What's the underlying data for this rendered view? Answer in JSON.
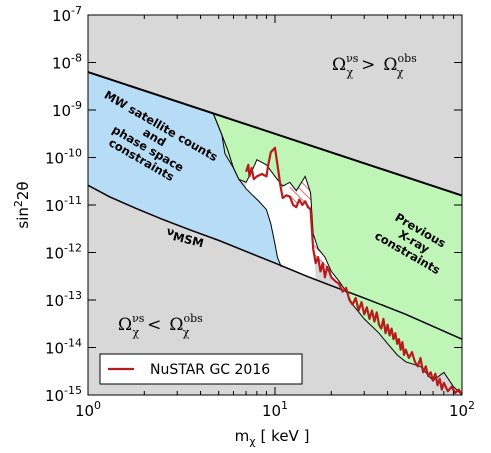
{
  "chart_data": {
    "type": "line",
    "title": "",
    "xlabel": {
      "main": "m",
      "sub": "χ",
      "unit": "[ keV ]"
    },
    "ylabel": {
      "main": "sin",
      "sup": "2",
      "suffix": "2θ"
    },
    "xscale": "log",
    "yscale": "log",
    "xlim": [
      1,
      100
    ],
    "ylim": [
      1e-15,
      1e-07
    ],
    "x_ticks": [
      {
        "value": 1,
        "base": "10",
        "exp": "0"
      },
      {
        "value": 10,
        "base": "10",
        "exp": "1"
      },
      {
        "value": 100,
        "base": "10",
        "exp": "2"
      }
    ],
    "y_ticks": [
      {
        "value": 1e-15,
        "base": "10",
        "exp": "-15"
      },
      {
        "value": 1e-14,
        "base": "10",
        "exp": "-14"
      },
      {
        "value": 1e-13,
        "base": "10",
        "exp": "-13"
      },
      {
        "value": 1e-12,
        "base": "10",
        "exp": "-12"
      },
      {
        "value": 1e-11,
        "base": "10",
        "exp": "-11"
      },
      {
        "value": 1e-10,
        "base": "10",
        "exp": "-10"
      },
      {
        "value": 1e-09,
        "base": "10",
        "exp": "-9"
      },
      {
        "value": 1e-08,
        "base": "10",
        "exp": "-8"
      },
      {
        "value": 1e-07,
        "base": "10",
        "exp": "-7"
      }
    ],
    "grid": false,
    "legend": {
      "placement": "bottom-left",
      "entries": [
        {
          "name": "NuSTAR GC 2016",
          "color": "#b71c1c"
        }
      ]
    },
    "colors": {
      "background": "#d8d8d8",
      "mw_region": "#b6dcf6",
      "xray_region": "#c0f5b8",
      "nustar_line": "#b71c1c",
      "hatch": "#e06a60"
    },
    "annotations": {
      "upper": {
        "main": "Ω",
        "sup": "νs",
        "sub": "χ",
        "op": ">",
        "rhs": "Ω",
        "rhs_sup": "obs",
        "rhs_sub": "χ"
      },
      "lower": {
        "main": "Ω",
        "sup": "νs",
        "sub": "χ",
        "op": "<",
        "rhs": "Ω",
        "rhs_sup": "obs",
        "rhs_sub": "χ"
      },
      "mw": [
        "MW satellite counts",
        "and",
        "phase space",
        "constraints"
      ],
      "xray": [
        "Previous",
        "X-ray",
        "constraints"
      ],
      "numsm": {
        "prefix": "ν",
        "text": "MSM"
      }
    },
    "series": [
      {
        "name": "upper_boundary",
        "x": [
          1,
          100
        ],
        "y": [
          6.3e-09,
          1.58e-11
        ]
      },
      {
        "name": "lower_boundary",
        "x": [
          1,
          1.3,
          1.8,
          2.5,
          3.5,
          5,
          7,
          10,
          15,
          20,
          30,
          50,
          100
        ],
        "y": [
          2.6e-11,
          1.5e-11,
          8.5e-12,
          5e-12,
          3e-12,
          1.8e-12,
          1.05e-12,
          6e-13,
          3.1e-13,
          2e-13,
          1.1e-13,
          5e-14,
          1.5e-14
        ]
      },
      {
        "name": "xray_boundary",
        "x": [
          4.7,
          5.2,
          5.4,
          6,
          6.4,
          7,
          7.5,
          8,
          9,
          10,
          11,
          12,
          13,
          14.5,
          15.5,
          16,
          17,
          18.5,
          20,
          22,
          24,
          26,
          30,
          36,
          40,
          45,
          50,
          60,
          70,
          80,
          90,
          100
        ],
        "y": [
          8e-10,
          3e-10,
          1.2e-10,
          6e-11,
          3.5e-11,
          3e-11,
          5e-11,
          9e-11,
          7e-11,
          4e-11,
          2.5e-11,
          3e-11,
          2e-11,
          4e-11,
          1.8e-11,
          2.5e-12,
          1.2e-12,
          8e-13,
          4e-13,
          2.5e-13,
          1.5e-13,
          8e-14,
          4e-14,
          2e-14,
          1.2e-14,
          7e-15,
          5e-15,
          4e-15,
          2e-15,
          3e-15,
          1.5e-15,
          1e-15
        ]
      },
      {
        "name": "mw_boundary",
        "x": [
          4.7,
          5.2,
          5.6,
          6,
          6.4,
          7,
          7.6,
          8.2,
          9,
          9.5,
          10,
          10.3,
          10.8
        ],
        "y": [
          8e-10,
          3e-10,
          1.4e-10,
          6e-11,
          3.5e-11,
          2.2e-11,
          1.6e-11,
          1.2e-11,
          8e-12,
          4e-12,
          1.5e-12,
          8e-13,
          5e-13
        ]
      },
      {
        "name": "NuSTAR GC 2016",
        "x": [
          7.0,
          7.2,
          7.3,
          7.5,
          7.7,
          8,
          8.5,
          9,
          9.2,
          9.5,
          10,
          10.4,
          10.7,
          11,
          11.5,
          12,
          12.5,
          13,
          13.5,
          14,
          14.5,
          15,
          15.5,
          16,
          16.5,
          17,
          17.5,
          18,
          18.5,
          19,
          19.5,
          20,
          21,
          22,
          23,
          24,
          25,
          26,
          27,
          28,
          29,
          30,
          31,
          32,
          33,
          34,
          35,
          36,
          37,
          38,
          39,
          40,
          41,
          42,
          43,
          44,
          45,
          46,
          47,
          48,
          49,
          50,
          52,
          54,
          56,
          58,
          60,
          62,
          64,
          66,
          68,
          70,
          72,
          74,
          76,
          78,
          80,
          84,
          88,
          92,
          96,
          100
        ],
        "y": [
          5e-11,
          7e-11,
          4e-11,
          6e-11,
          3.5e-11,
          4e-11,
          4.5e-11,
          4e-11,
          7e-11,
          1.3e-10,
          1.6e-10,
          5.5e-11,
          2.5e-11,
          1.4e-11,
          1.6e-11,
          1.5e-11,
          1e-11,
          9e-12,
          1.3e-11,
          1e-11,
          1.2e-11,
          9e-12,
          8e-12,
          1.2e-12,
          6e-13,
          8e-13,
          4e-13,
          6e-13,
          3e-13,
          5e-13,
          4e-13,
          3e-13,
          2.5e-13,
          2.2e-13,
          1.5e-13,
          1.8e-13,
          1e-13,
          8e-14,
          1.1e-13,
          6e-14,
          9e-14,
          5e-14,
          7e-14,
          4e-14,
          6e-14,
          3.5e-14,
          5.5e-14,
          3e-14,
          2.5e-14,
          4e-14,
          2e-14,
          3e-14,
          1.8e-14,
          2.5e-14,
          1.5e-14,
          2e-14,
          1.2e-14,
          1.5e-14,
          9e-15,
          1.3e-14,
          7e-15,
          9e-15,
          6e-15,
          8e-15,
          5e-15,
          4e-15,
          6e-15,
          3e-15,
          4e-15,
          2.5e-15,
          3e-15,
          2e-15,
          2.8e-15,
          1.6e-15,
          2.2e-15,
          1.3e-15,
          1.8e-15,
          1.2e-15,
          1.5e-15,
          1.1e-15,
          1.3e-15,
          1e-15
        ]
      }
    ]
  }
}
